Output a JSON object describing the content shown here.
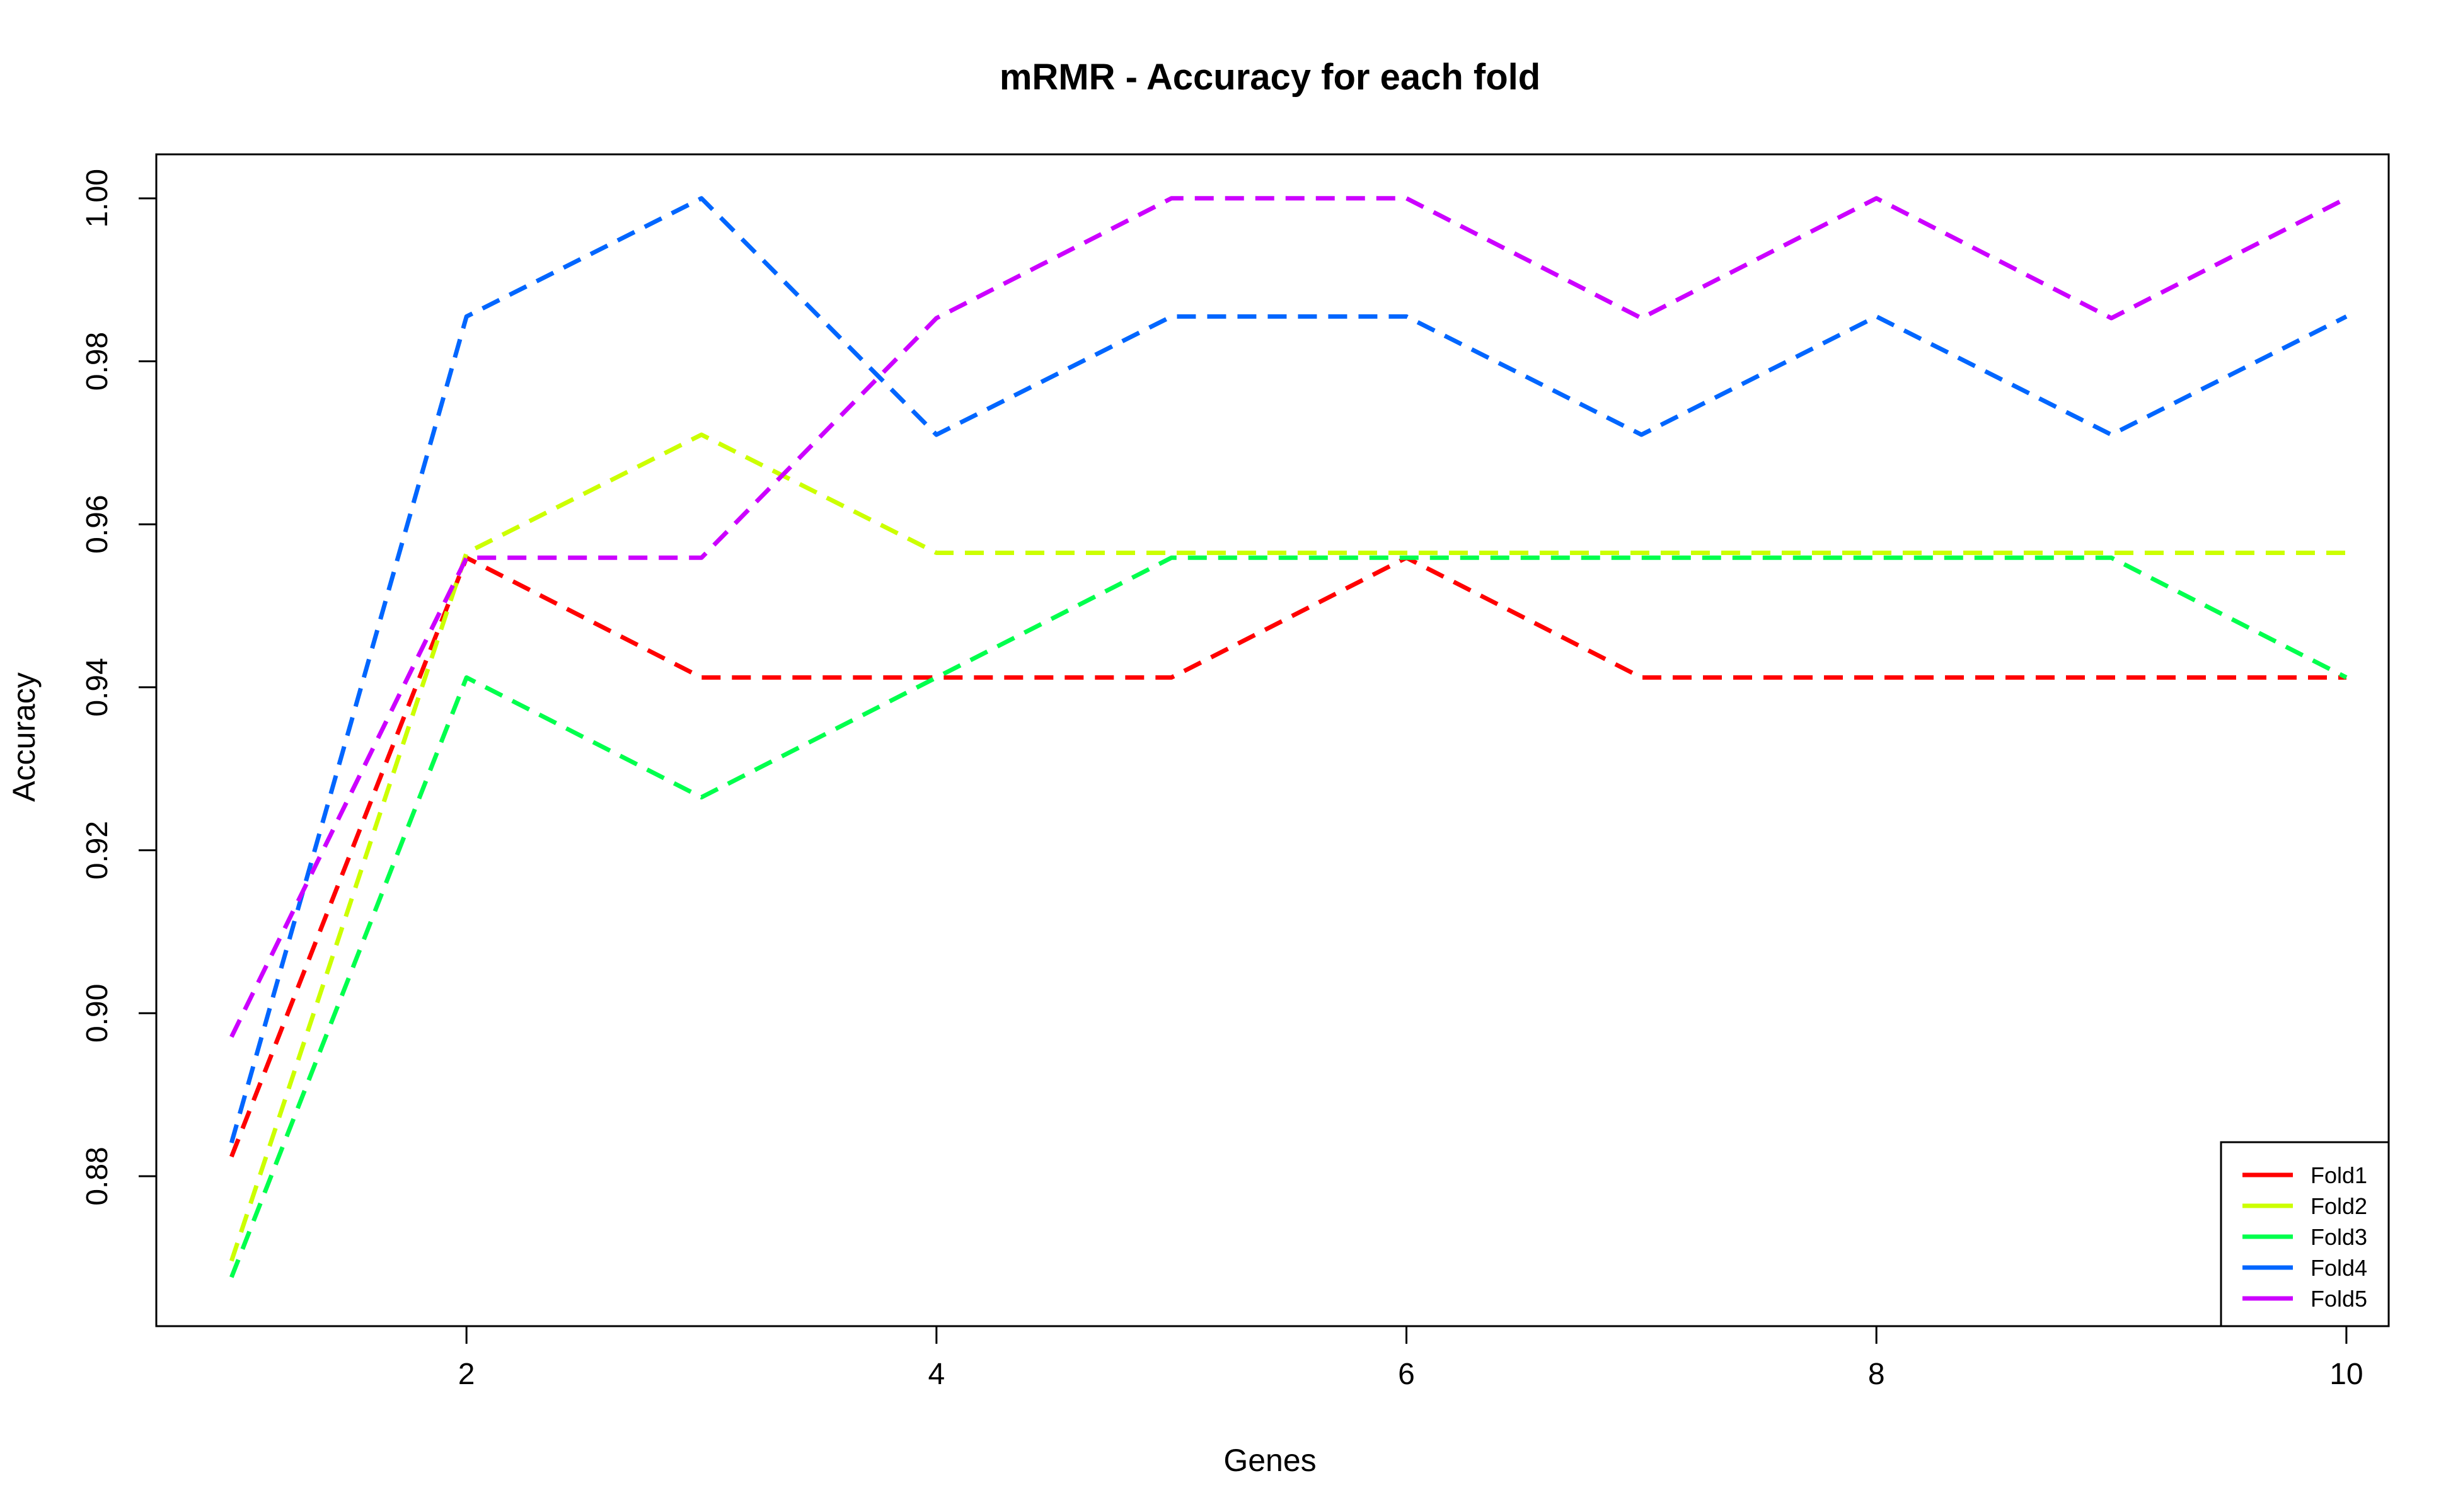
{
  "chart_data": {
    "type": "line",
    "title": "mRMR - Accuracy for each fold",
    "xlabel": "Genes",
    "ylabel": "Accuracy",
    "x": [
      1,
      2,
      3,
      4,
      5,
      6,
      7,
      8,
      9,
      10
    ],
    "xlim": [
      0.68,
      10.18
    ],
    "ylim": [
      0.8616,
      1.0054
    ],
    "xticks": [
      2,
      4,
      6,
      8,
      10
    ],
    "xtick_labels": [
      "2",
      "4",
      "6",
      "8",
      "10"
    ],
    "yticks": [
      0.88,
      0.9,
      0.92,
      0.94,
      0.96,
      0.98,
      1.0
    ],
    "ytick_labels": [
      "0.88",
      "0.90",
      "0.92",
      "0.94",
      "0.96",
      "0.98",
      "1.00"
    ],
    "grid": false,
    "line_style": "dashed",
    "legend": {
      "position": "bottom-right",
      "show": true
    },
    "series": [
      {
        "name": "Fold1",
        "color": "#ff0000",
        "values": [
          0.8824,
          0.9559,
          0.9412,
          0.9412,
          0.9412,
          0.9559,
          0.9412,
          0.9412,
          0.9412,
          0.9412
        ]
      },
      {
        "name": "Fold2",
        "color": "#ccff00",
        "values": [
          0.8696,
          0.9565,
          0.971,
          0.9565,
          0.9565,
          0.9565,
          0.9565,
          0.9565,
          0.9565,
          0.9565
        ]
      },
      {
        "name": "Fold3",
        "color": "#00ff4d",
        "values": [
          0.8676,
          0.9412,
          0.9265,
          0.9412,
          0.9559,
          0.9559,
          0.9559,
          0.9559,
          0.9559,
          0.9412
        ]
      },
      {
        "name": "Fold4",
        "color": "#0066ff",
        "values": [
          0.8841,
          0.9855,
          1.0,
          0.971,
          0.9855,
          0.9855,
          0.971,
          0.9855,
          0.971,
          0.9855
        ]
      },
      {
        "name": "Fold5",
        "color": "#cc00ff",
        "values": [
          0.8971,
          0.9559,
          0.9559,
          0.9853,
          1.0,
          1.0,
          0.9853,
          1.0,
          0.9853,
          1.0
        ]
      }
    ]
  }
}
